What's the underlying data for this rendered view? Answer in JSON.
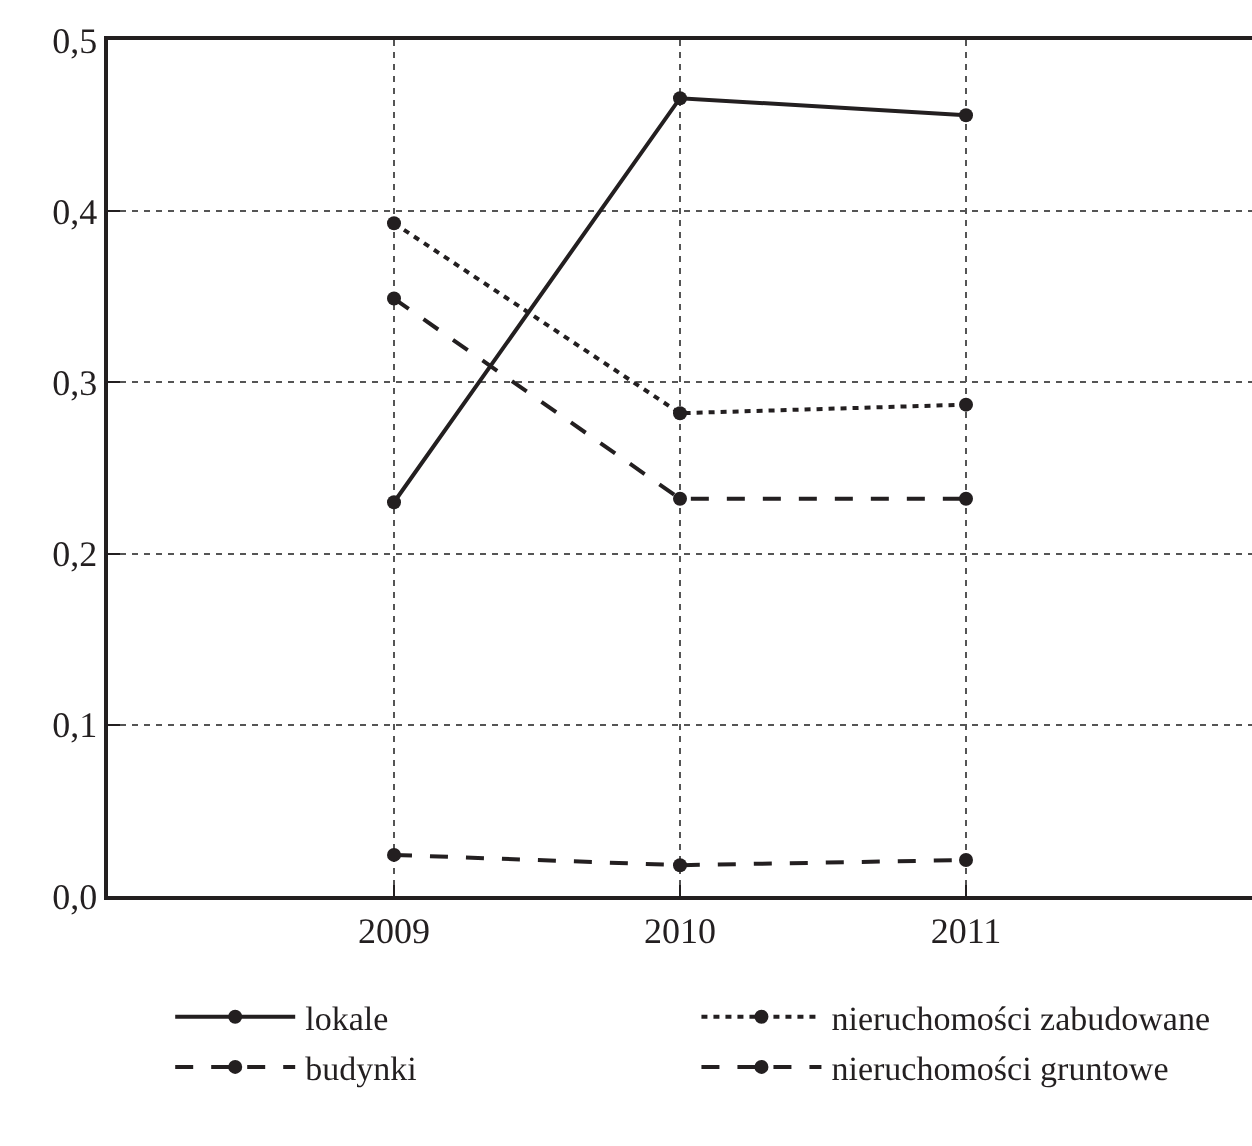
{
  "chart_data": {
    "type": "line",
    "x": [
      2009,
      2010,
      2011
    ],
    "xlim": [
      2008,
      2012
    ],
    "xticks": [
      2009,
      2010,
      2011
    ],
    "ylim": [
      0,
      0.5
    ],
    "yticks": [
      {
        "value": 0,
        "label": "0,0"
      },
      {
        "value": 0.1,
        "label": "0,1"
      },
      {
        "value": 0.2,
        "label": "0,2"
      },
      {
        "value": 0.3,
        "label": "0,3"
      },
      {
        "value": 0.4,
        "label": "0,4"
      },
      {
        "value": 0.5,
        "label": "0,5"
      }
    ],
    "grid": true,
    "legend": "bottom",
    "marker": "circle",
    "series": [
      {
        "name": "lokale",
        "color": "#231f20",
        "line_style": "solid",
        "values": [
          0.23,
          0.466,
          0.456
        ]
      },
      {
        "name": "nieruchomości zabudowane",
        "color": "#231f20",
        "line_style": "dotted",
        "values": [
          0.393,
          0.282,
          0.287
        ]
      },
      {
        "name": "budynki",
        "color": "#231f20",
        "line_style": "dashed",
        "values": [
          0.024,
          0.018,
          0.021
        ]
      },
      {
        "name": "nieruchomości gruntowe",
        "color": "#231f20",
        "line_style": "dashed",
        "values": [
          0.349,
          0.232,
          0.232
        ]
      }
    ]
  }
}
